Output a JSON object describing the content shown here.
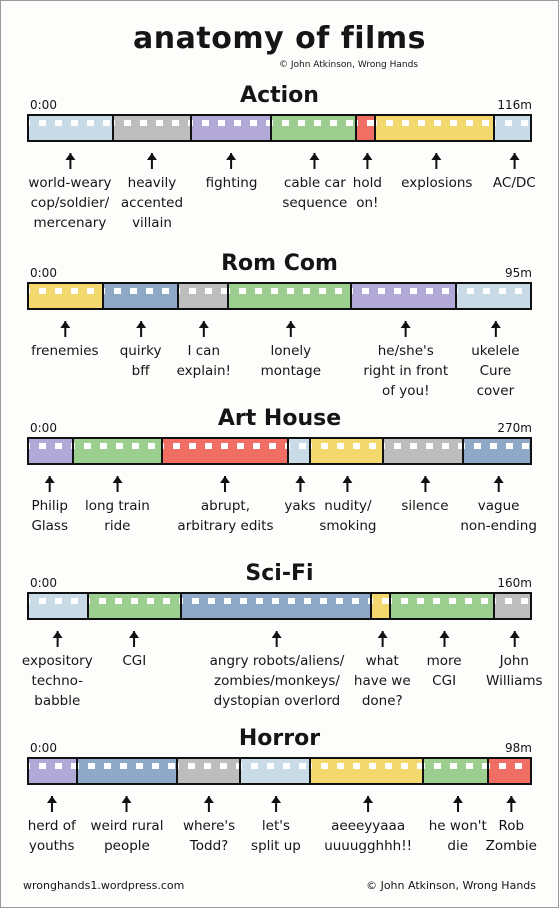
{
  "title": "anatomy of films",
  "credit": "© John Atkinson, Wrong Hands",
  "footer": {
    "website": "wronghands1.wordpress.com",
    "copyright": "© John Atkinson, Wrong Hands"
  },
  "colors": {
    "blue": "#cfdde6",
    "gray": "#b9b9b9",
    "purple": "#b2a8d6",
    "green": "#9ad08f",
    "red": "#f07a6f",
    "yellow": "#f3d86e",
    "steel": "#8aa6c6"
  },
  "sections": [
    {
      "genre": "Action",
      "start": "0:00",
      "end": "116m",
      "segments": [
        {
          "color": "#c9dbe6",
          "fraction": 0.17,
          "label": "world-weary\ncop/soldier/\nmercenary"
        },
        {
          "color": "#bdbdbd",
          "fraction": 0.155,
          "label": "heavily\naccented\nvillain"
        },
        {
          "color": "#b3a9d8",
          "fraction": 0.16,
          "label": "fighting"
        },
        {
          "color": "#9ccf8f",
          "fraction": 0.17,
          "label": "cable car\nsequence"
        },
        {
          "color": "#f06e64",
          "fraction": 0.038,
          "label": "hold\non!"
        },
        {
          "color": "#f3d86e",
          "fraction": 0.237,
          "label": "explosions"
        },
        {
          "color": "#c9dbe6",
          "fraction": 0.07,
          "label": "AC/DC"
        }
      ]
    },
    {
      "genre": "Rom Com",
      "start": "0:00",
      "end": "95m",
      "segments": [
        {
          "color": "#f3d86e",
          "fraction": 0.15,
          "label": "frenemies"
        },
        {
          "color": "#8ea9c8",
          "fraction": 0.15,
          "label": "quirky\nbff"
        },
        {
          "color": "#bdbdbd",
          "fraction": 0.1,
          "label": "I can\nexplain!"
        },
        {
          "color": "#9ccf8f",
          "fraction": 0.245,
          "label": "lonely\nmontage"
        },
        {
          "color": "#b3a9d8",
          "fraction": 0.21,
          "label": "he/she's\nright in front\nof you!"
        },
        {
          "color": "#c9dbe6",
          "fraction": 0.145,
          "label": "ukelele\nCure\ncover"
        }
      ]
    },
    {
      "genre": "Art House",
      "start": "0:00",
      "end": "270m",
      "segments": [
        {
          "color": "#b3a9d8",
          "fraction": 0.09,
          "label": "Philip\nGlass"
        },
        {
          "color": "#9ccf8f",
          "fraction": 0.178,
          "label": "long train\nride"
        },
        {
          "color": "#f06e64",
          "fraction": 0.25,
          "label": "abrupt,\narbitrary edits"
        },
        {
          "color": "#c9dbe6",
          "fraction": 0.045,
          "label": "yaks"
        },
        {
          "color": "#f3d86e",
          "fraction": 0.145,
          "label": "nudity/\nsmoking"
        },
        {
          "color": "#bdbdbd",
          "fraction": 0.16,
          "label": "silence"
        },
        {
          "color": "#8ea9c8",
          "fraction": 0.132,
          "label": "vague\nnon-ending"
        }
      ]
    },
    {
      "genre": "Sci-Fi",
      "start": "0:00",
      "end": "160m",
      "segments": [
        {
          "color": "#c9dbe6",
          "fraction": 0.12,
          "label": "expository\ntechno-\nbabble"
        },
        {
          "color": "#9ccf8f",
          "fraction": 0.185,
          "label": "CGI"
        },
        {
          "color": "#8ea9c8",
          "fraction": 0.38,
          "label": "angry robots/aliens/\nzombies/monkeys/\ndystopian overlord"
        },
        {
          "color": "#f3d86e",
          "fraction": 0.037,
          "label": "what\nhave we\ndone?"
        },
        {
          "color": "#9ccf8f",
          "fraction": 0.208,
          "label": "more\nCGI"
        },
        {
          "color": "#bdbdbd",
          "fraction": 0.07,
          "label": "John\nWilliams"
        }
      ]
    },
    {
      "genre": "Horror",
      "start": "0:00",
      "end": "98m",
      "segments": [
        {
          "color": "#b3a9d8",
          "fraction": 0.098,
          "label": "herd of\nyouths"
        },
        {
          "color": "#8ea9c8",
          "fraction": 0.2,
          "label": "weird rural\npeople"
        },
        {
          "color": "#bdbdbd",
          "fraction": 0.125,
          "label": "where's\nTodd?"
        },
        {
          "color": "#c9dbe6",
          "fraction": 0.14,
          "label": "let's\nsplit up"
        },
        {
          "color": "#f3d86e",
          "fraction": 0.225,
          "label": "aeeeyyaaa\nuuuugghhh!!"
        },
        {
          "color": "#9ccf8f",
          "fraction": 0.13,
          "label": "he won't\ndie"
        },
        {
          "color": "#f06e64",
          "fraction": 0.082,
          "label": "Rob\nZombie"
        }
      ]
    }
  ]
}
